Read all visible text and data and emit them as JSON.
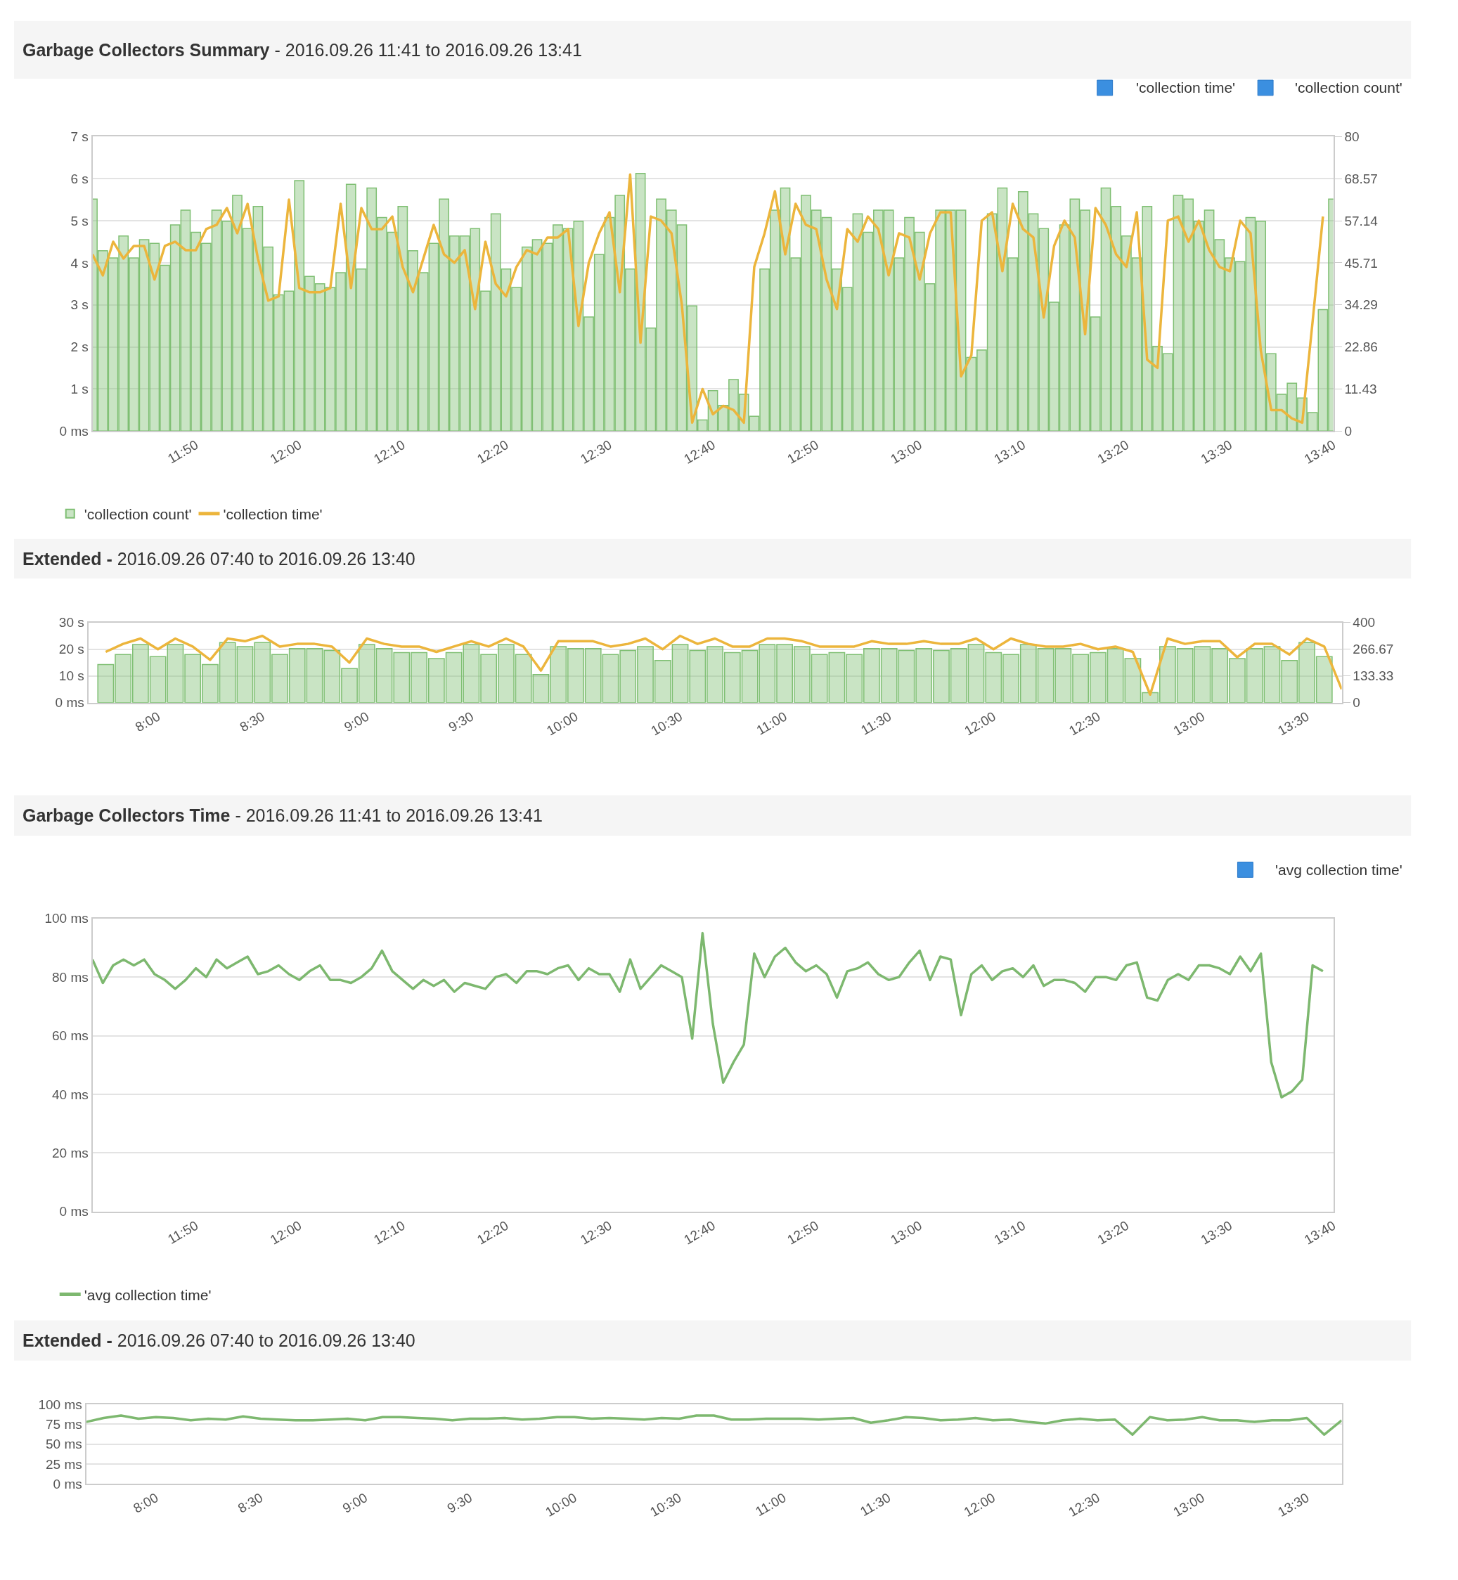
{
  "chart_data": [
    {
      "type": "bar",
      "title": "Garbage Collectors Summary",
      "subtitle": "- 2016.09.26 11:41 to 2016.09.26 13:41",
      "x": [
        "2016-09-26T11:40",
        "2016-09-26T11:41",
        "2016-09-26T11:42",
        "2016-09-26T11:43",
        "2016-09-26T11:44",
        "2016-09-26T11:45",
        "2016-09-26T11:46",
        "2016-09-26T11:47",
        "2016-09-26T11:48",
        "2016-09-26T11:49",
        "2016-09-26T11:50",
        "2016-09-26T11:51",
        "2016-09-26T11:52",
        "2016-09-26T11:53",
        "2016-09-26T11:54",
        "2016-09-26T11:55",
        "2016-09-26T11:56",
        "2016-09-26T11:57",
        "2016-09-26T11:58",
        "2016-09-26T11:59",
        "2016-09-26T12:00",
        "2016-09-26T12:01",
        "2016-09-26T12:02",
        "2016-09-26T12:03",
        "2016-09-26T12:04",
        "2016-09-26T12:05",
        "2016-09-26T12:06",
        "2016-09-26T12:07",
        "2016-09-26T12:08",
        "2016-09-26T12:09",
        "2016-09-26T12:10",
        "2016-09-26T12:11",
        "2016-09-26T12:12",
        "2016-09-26T12:13",
        "2016-09-26T12:14",
        "2016-09-26T12:15",
        "2016-09-26T12:16",
        "2016-09-26T12:17",
        "2016-09-26T12:18",
        "2016-09-26T12:19",
        "2016-09-26T12:20",
        "2016-09-26T12:21",
        "2016-09-26T12:22",
        "2016-09-26T12:23",
        "2016-09-26T12:24",
        "2016-09-26T12:25",
        "2016-09-26T12:26",
        "2016-09-26T12:27",
        "2016-09-26T12:28",
        "2016-09-26T12:29",
        "2016-09-26T12:30",
        "2016-09-26T12:31",
        "2016-09-26T12:32",
        "2016-09-26T12:33",
        "2016-09-26T12:34",
        "2016-09-26T12:35",
        "2016-09-26T12:36",
        "2016-09-26T12:37",
        "2016-09-26T12:38",
        "2016-09-26T12:39",
        "2016-09-26T12:40",
        "2016-09-26T12:41",
        "2016-09-26T12:42",
        "2016-09-26T12:43",
        "2016-09-26T12:44",
        "2016-09-26T12:45",
        "2016-09-26T12:46",
        "2016-09-26T12:47",
        "2016-09-26T12:48",
        "2016-09-26T12:49",
        "2016-09-26T12:50",
        "2016-09-26T12:51",
        "2016-09-26T12:52",
        "2016-09-26T12:53",
        "2016-09-26T12:54",
        "2016-09-26T12:55",
        "2016-09-26T12:56",
        "2016-09-26T12:57",
        "2016-09-26T12:58",
        "2016-09-26T12:59",
        "2016-09-26T13:00",
        "2016-09-26T13:01",
        "2016-09-26T13:02",
        "2016-09-26T13:03",
        "2016-09-26T13:04",
        "2016-09-26T13:05",
        "2016-09-26T13:06",
        "2016-09-26T13:07",
        "2016-09-26T13:08",
        "2016-09-26T13:09",
        "2016-09-26T13:10",
        "2016-09-26T13:11",
        "2016-09-26T13:12",
        "2016-09-26T13:13",
        "2016-09-26T13:14",
        "2016-09-26T13:15",
        "2016-09-26T13:16",
        "2016-09-26T13:17",
        "2016-09-26T13:18",
        "2016-09-26T13:19",
        "2016-09-26T13:20",
        "2016-09-26T13:21",
        "2016-09-26T13:22",
        "2016-09-26T13:23",
        "2016-09-26T13:24",
        "2016-09-26T13:25",
        "2016-09-26T13:26",
        "2016-09-26T13:27",
        "2016-09-26T13:28",
        "2016-09-26T13:29",
        "2016-09-26T13:30",
        "2016-09-26T13:31",
        "2016-09-26T13:32",
        "2016-09-26T13:33",
        "2016-09-26T13:34",
        "2016-09-26T13:35",
        "2016-09-26T13:36",
        "2016-09-26T13:37",
        "2016-09-26T13:38",
        "2016-09-26T13:39",
        "2016-09-26T13:40"
      ],
      "series": [
        {
          "name": "'collection count'",
          "type": "bar",
          "axis": "y2",
          "color": "#7fbf73",
          "values": [
            63,
            49,
            47,
            53,
            47,
            52,
            51,
            45,
            56,
            60,
            54,
            51,
            60,
            57,
            64,
            55,
            61,
            50,
            37,
            38,
            68,
            42,
            40,
            39,
            43,
            67,
            44,
            66,
            58,
            54,
            61,
            49,
            43,
            51,
            63,
            53,
            53,
            55,
            38,
            59,
            44,
            39,
            50,
            52,
            51,
            56,
            55,
            57,
            31,
            48,
            58,
            64,
            44,
            70,
            28,
            63,
            60,
            56,
            34,
            3,
            11,
            7,
            14,
            10,
            4,
            44,
            60,
            66,
            47,
            64,
            60,
            58,
            44,
            39,
            59,
            54,
            60,
            60,
            47,
            58,
            54,
            40,
            60,
            60,
            60,
            20,
            22,
            59,
            66,
            47,
            65,
            59,
            55,
            35,
            56,
            63,
            60,
            31,
            66,
            61,
            53,
            47,
            61,
            23,
            21,
            64,
            63,
            57,
            60,
            52,
            47,
            46,
            58,
            57,
            21,
            10,
            13,
            9,
            5,
            33,
            63
          ]
        },
        {
          "name": "'collection time'",
          "type": "line",
          "color": "#ecb53c",
          "values": [
            4.2,
            3.7,
            4.5,
            4.1,
            4.4,
            4.4,
            3.6,
            4.4,
            4.5,
            4.3,
            4.3,
            4.8,
            4.9,
            5.3,
            4.7,
            5.4,
            4.1,
            3.1,
            3.2,
            5.5,
            3.4,
            3.3,
            3.3,
            3.4,
            5.4,
            3.4,
            5.3,
            4.8,
            4.8,
            5.1,
            3.9,
            3.3,
            4.1,
            4.9,
            4.2,
            4.0,
            4.3,
            2.9,
            4.5,
            3.5,
            3.2,
            3.9,
            4.3,
            4.2,
            4.6,
            4.6,
            4.8,
            2.5,
            4.0,
            4.7,
            5.2,
            3.3,
            6.1,
            2.1,
            5.1,
            5.0,
            4.7,
            3.0,
            0.2,
            1.0,
            0.4,
            0.6,
            0.5,
            0.2,
            3.9,
            4.7,
            5.7,
            4.2,
            5.4,
            4.9,
            4.8,
            3.6,
            2.9,
            4.8,
            4.5,
            5.1,
            4.8,
            3.7,
            4.7,
            4.6,
            3.6,
            4.7,
            5.2,
            5.2,
            1.3,
            1.8,
            5.0,
            5.2,
            3.8,
            5.4,
            4.8,
            4.6,
            2.7,
            4.4,
            5.0,
            4.6,
            2.3,
            5.3,
            4.9,
            4.2,
            3.9,
            5.2,
            1.7,
            1.5,
            5.0,
            5.1,
            4.5,
            5.0,
            4.3,
            3.9,
            3.8,
            5.0,
            4.7,
            1.9,
            0.5,
            0.5,
            0.3,
            0.2,
            2.6,
            5.1,
            null
          ]
        }
      ],
      "xlim": [
        "2016-09-26T11:40",
        "2016-09-26T13:40"
      ],
      "xticks": [
        {
          "value": "2016-09-26T11:50",
          "label": "11:50"
        },
        {
          "value": "2016-09-26T12:00",
          "label": "12:00"
        },
        {
          "value": "2016-09-26T12:10",
          "label": "12:10"
        },
        {
          "value": "2016-09-26T12:20",
          "label": "12:20"
        },
        {
          "value": "2016-09-26T12:30",
          "label": "12:30"
        },
        {
          "value": "2016-09-26T12:40",
          "label": "12:40"
        },
        {
          "value": "2016-09-26T12:50",
          "label": "12:50"
        },
        {
          "value": "2016-09-26T13:00",
          "label": "13:00"
        },
        {
          "value": "2016-09-26T13:10",
          "label": "13:10"
        },
        {
          "value": "2016-09-26T13:20",
          "label": "13:20"
        },
        {
          "value": "2016-09-26T13:30",
          "label": "13:30"
        },
        {
          "value": "2016-09-26T13:40",
          "label": "13:40"
        }
      ],
      "ylim": [
        0,
        7
      ],
      "yticks": [
        {
          "value": 0,
          "label": "0 ms"
        },
        {
          "value": 1,
          "label": "1 s"
        },
        {
          "value": 2,
          "label": "2 s"
        },
        {
          "value": 3,
          "label": "3 s"
        },
        {
          "value": 4,
          "label": "4 s"
        },
        {
          "value": 5,
          "label": "5 s"
        },
        {
          "value": 6,
          "label": "6 s"
        },
        {
          "value": 7,
          "label": "7 s"
        }
      ],
      "y2lim": [
        0,
        80
      ],
      "y2ticks": [
        0,
        11.43,
        22.86,
        34.29,
        45.71,
        57.14,
        68.57,
        80
      ],
      "grid": "y",
      "legend": "bottom left"
    },
    {
      "type": "bar",
      "title": "Extended -",
      "subtitle": "2016.09.26 07:40 to 2016.09.26 13:40",
      "x": [
        "2016-09-26T07:45",
        "2016-09-26T07:50",
        "2016-09-26T07:55",
        "2016-09-26T08:00",
        "2016-09-26T08:05",
        "2016-09-26T08:10",
        "2016-09-26T08:15",
        "2016-09-26T08:20",
        "2016-09-26T08:25",
        "2016-09-26T08:30",
        "2016-09-26T08:35",
        "2016-09-26T08:40",
        "2016-09-26T08:45",
        "2016-09-26T08:50",
        "2016-09-26T08:55",
        "2016-09-26T09:00",
        "2016-09-26T09:05",
        "2016-09-26T09:10",
        "2016-09-26T09:15",
        "2016-09-26T09:20",
        "2016-09-26T09:25",
        "2016-09-26T09:30",
        "2016-09-26T09:35",
        "2016-09-26T09:40",
        "2016-09-26T09:45",
        "2016-09-26T09:50",
        "2016-09-26T09:55",
        "2016-09-26T10:00",
        "2016-09-26T10:05",
        "2016-09-26T10:10",
        "2016-09-26T10:15",
        "2016-09-26T10:20",
        "2016-09-26T10:25",
        "2016-09-26T10:30",
        "2016-09-26T10:35",
        "2016-09-26T10:40",
        "2016-09-26T10:45",
        "2016-09-26T10:50",
        "2016-09-26T10:55",
        "2016-09-26T11:00",
        "2016-09-26T11:05",
        "2016-09-26T11:10",
        "2016-09-26T11:15",
        "2016-09-26T11:20",
        "2016-09-26T11:25",
        "2016-09-26T11:30",
        "2016-09-26T11:35",
        "2016-09-26T11:40",
        "2016-09-26T11:45",
        "2016-09-26T11:50",
        "2016-09-26T11:55",
        "2016-09-26T12:00",
        "2016-09-26T12:05",
        "2016-09-26T12:10",
        "2016-09-26T12:15",
        "2016-09-26T12:20",
        "2016-09-26T12:25",
        "2016-09-26T12:30",
        "2016-09-26T12:35",
        "2016-09-26T12:40",
        "2016-09-26T12:45",
        "2016-09-26T12:50",
        "2016-09-26T12:55",
        "2016-09-26T13:00",
        "2016-09-26T13:05",
        "2016-09-26T13:10",
        "2016-09-26T13:15",
        "2016-09-26T13:20",
        "2016-09-26T13:25",
        "2016-09-26T13:30",
        "2016-09-26T13:35",
        "2016-09-26T13:40"
      ],
      "series": [
        {
          "type": "bar",
          "axis": "y2",
          "color": "#7fbf73",
          "values": [
            190,
            240,
            290,
            230,
            290,
            240,
            190,
            300,
            280,
            300,
            240,
            270,
            270,
            260,
            170,
            290,
            270,
            250,
            250,
            220,
            250,
            290,
            240,
            290,
            240,
            140,
            280,
            270,
            270,
            240,
            260,
            280,
            210,
            290,
            260,
            280,
            250,
            260,
            290,
            290,
            280,
            240,
            250,
            240,
            270,
            270,
            260,
            270,
            260,
            270,
            290,
            250,
            240,
            290,
            270,
            270,
            240,
            250,
            270,
            220,
            50,
            280,
            270,
            280,
            270,
            220,
            270,
            280,
            210,
            300,
            230,
            null
          ]
        },
        {
          "type": "line",
          "color": "#ecb53c",
          "values": [
            19,
            22,
            24,
            20,
            24,
            21,
            16,
            24,
            23,
            25,
            21,
            22,
            22,
            21,
            15,
            24,
            22,
            21,
            21,
            19,
            21,
            23,
            21,
            24,
            21,
            12,
            23,
            23,
            23,
            21,
            22,
            24,
            20,
            25,
            22,
            24,
            21,
            21,
            24,
            24,
            23,
            21,
            21,
            21,
            23,
            22,
            22,
            23,
            22,
            22,
            24,
            20,
            24,
            22,
            21,
            21,
            22,
            20,
            21,
            19,
            3,
            24,
            22,
            23,
            23,
            17,
            22,
            22,
            18,
            24,
            21,
            5
          ]
        }
      ],
      "xlim": [
        "2016-09-26T07:40",
        "2016-09-26T13:40"
      ],
      "xticks": [
        {
          "value": "2016-09-26T08:00",
          "label": "8:00"
        },
        {
          "value": "2016-09-26T08:30",
          "label": "8:30"
        },
        {
          "value": "2016-09-26T09:00",
          "label": "9:00"
        },
        {
          "value": "2016-09-26T09:30",
          "label": "9:30"
        },
        {
          "value": "2016-09-26T10:00",
          "label": "10:00"
        },
        {
          "value": "2016-09-26T10:30",
          "label": "10:30"
        },
        {
          "value": "2016-09-26T11:00",
          "label": "11:00"
        },
        {
          "value": "2016-09-26T11:30",
          "label": "11:30"
        },
        {
          "value": "2016-09-26T12:00",
          "label": "12:00"
        },
        {
          "value": "2016-09-26T12:30",
          "label": "12:30"
        },
        {
          "value": "2016-09-26T13:00",
          "label": "13:00"
        },
        {
          "value": "2016-09-26T13:30",
          "label": "13:30"
        }
      ],
      "ylim": [
        0,
        30
      ],
      "yticks": [
        {
          "value": 0,
          "label": "0 ms"
        },
        {
          "value": 10,
          "label": "10 s"
        },
        {
          "value": 20,
          "label": "20 s"
        },
        {
          "value": 30,
          "label": "30 s"
        }
      ],
      "y2lim": [
        0,
        400
      ],
      "y2ticks": [
        0,
        133.33,
        266.67,
        400
      ],
      "grid": "y"
    },
    {
      "type": "line",
      "title": "Garbage Collectors Time",
      "subtitle": "- 2016.09.26 11:41 to 2016.09.26 13:41",
      "x": [
        "2016-09-26T11:40",
        "2016-09-26T11:41",
        "2016-09-26T11:42",
        "2016-09-26T11:43",
        "2016-09-26T11:44",
        "2016-09-26T11:45",
        "2016-09-26T11:46",
        "2016-09-26T11:47",
        "2016-09-26T11:48",
        "2016-09-26T11:49",
        "2016-09-26T11:50",
        "2016-09-26T11:51",
        "2016-09-26T11:52",
        "2016-09-26T11:53",
        "2016-09-26T11:54",
        "2016-09-26T11:55",
        "2016-09-26T11:56",
        "2016-09-26T11:57",
        "2016-09-26T11:58",
        "2016-09-26T11:59",
        "2016-09-26T12:00",
        "2016-09-26T12:01",
        "2016-09-26T12:02",
        "2016-09-26T12:03",
        "2016-09-26T12:04",
        "2016-09-26T12:05",
        "2016-09-26T12:06",
        "2016-09-26T12:07",
        "2016-09-26T12:08",
        "2016-09-26T12:09",
        "2016-09-26T12:10",
        "2016-09-26T12:11",
        "2016-09-26T12:12",
        "2016-09-26T12:13",
        "2016-09-26T12:14",
        "2016-09-26T12:15",
        "2016-09-26T12:16",
        "2016-09-26T12:17",
        "2016-09-26T12:18",
        "2016-09-26T12:19",
        "2016-09-26T12:20",
        "2016-09-26T12:21",
        "2016-09-26T12:22",
        "2016-09-26T12:23",
        "2016-09-26T12:24",
        "2016-09-26T12:25",
        "2016-09-26T12:26",
        "2016-09-26T12:27",
        "2016-09-26T12:28",
        "2016-09-26T12:29",
        "2016-09-26T12:30",
        "2016-09-26T12:31",
        "2016-09-26T12:32",
        "2016-09-26T12:33",
        "2016-09-26T12:34",
        "2016-09-26T12:35",
        "2016-09-26T12:36",
        "2016-09-26T12:37",
        "2016-09-26T12:38",
        "2016-09-26T12:39",
        "2016-09-26T12:40",
        "2016-09-26T12:41",
        "2016-09-26T12:42",
        "2016-09-26T12:43",
        "2016-09-26T12:44",
        "2016-09-26T12:45",
        "2016-09-26T12:46",
        "2016-09-26T12:47",
        "2016-09-26T12:48",
        "2016-09-26T12:49",
        "2016-09-26T12:50",
        "2016-09-26T12:51",
        "2016-09-26T12:52",
        "2016-09-26T12:53",
        "2016-09-26T12:54",
        "2016-09-26T12:55",
        "2016-09-26T12:56",
        "2016-09-26T12:57",
        "2016-09-26T12:58",
        "2016-09-26T12:59",
        "2016-09-26T13:00",
        "2016-09-26T13:01",
        "2016-09-26T13:02",
        "2016-09-26T13:03",
        "2016-09-26T13:04",
        "2016-09-26T13:05",
        "2016-09-26T13:06",
        "2016-09-26T13:07",
        "2016-09-26T13:08",
        "2016-09-26T13:09",
        "2016-09-26T13:10",
        "2016-09-26T13:11",
        "2016-09-26T13:12",
        "2016-09-26T13:13",
        "2016-09-26T13:14",
        "2016-09-26T13:15",
        "2016-09-26T13:16",
        "2016-09-26T13:17",
        "2016-09-26T13:18",
        "2016-09-26T13:19",
        "2016-09-26T13:20",
        "2016-09-26T13:21",
        "2016-09-26T13:22",
        "2016-09-26T13:23",
        "2016-09-26T13:24",
        "2016-09-26T13:25",
        "2016-09-26T13:26",
        "2016-09-26T13:27",
        "2016-09-26T13:28",
        "2016-09-26T13:29",
        "2016-09-26T13:30",
        "2016-09-26T13:31",
        "2016-09-26T13:32",
        "2016-09-26T13:33",
        "2016-09-26T13:34",
        "2016-09-26T13:35",
        "2016-09-26T13:36",
        "2016-09-26T13:37",
        "2016-09-26T13:38",
        "2016-09-26T13:39"
      ],
      "series": [
        {
          "name": "'avg collection time'",
          "color": "#7db86f",
          "values": [
            86,
            78,
            84,
            86,
            84,
            86,
            81,
            79,
            76,
            79,
            83,
            80,
            86,
            83,
            85,
            87,
            81,
            82,
            84,
            81,
            79,
            82,
            84,
            79,
            79,
            78,
            80,
            83,
            89,
            82,
            79,
            76,
            79,
            77,
            79,
            75,
            78,
            77,
            76,
            80,
            81,
            78,
            82,
            82,
            81,
            83,
            84,
            79,
            83,
            81,
            81,
            75,
            86,
            76,
            80,
            84,
            82,
            80,
            59,
            95,
            64,
            44,
            51,
            57,
            88,
            80,
            87,
            90,
            85,
            82,
            84,
            81,
            73,
            82,
            83,
            85,
            81,
            79,
            80,
            85,
            89,
            79,
            87,
            86,
            67,
            81,
            84,
            79,
            82,
            83,
            80,
            84,
            77,
            79,
            79,
            78,
            75,
            80,
            80,
            79,
            84,
            85,
            73,
            72,
            79,
            81,
            79,
            84,
            84,
            83,
            81,
            87,
            82,
            88,
            51,
            39,
            41,
            45,
            84,
            82
          ]
        }
      ],
      "xlim": [
        "2016-09-26T11:40",
        "2016-09-26T13:40"
      ],
      "xticks": [
        {
          "value": "2016-09-26T11:50",
          "label": "11:50"
        },
        {
          "value": "2016-09-26T12:00",
          "label": "12:00"
        },
        {
          "value": "2016-09-26T12:10",
          "label": "12:10"
        },
        {
          "value": "2016-09-26T12:20",
          "label": "12:20"
        },
        {
          "value": "2016-09-26T12:30",
          "label": "12:30"
        },
        {
          "value": "2016-09-26T12:40",
          "label": "12:40"
        },
        {
          "value": "2016-09-26T12:50",
          "label": "12:50"
        },
        {
          "value": "2016-09-26T13:00",
          "label": "13:00"
        },
        {
          "value": "2016-09-26T13:10",
          "label": "13:10"
        },
        {
          "value": "2016-09-26T13:20",
          "label": "13:20"
        },
        {
          "value": "2016-09-26T13:30",
          "label": "13:30"
        },
        {
          "value": "2016-09-26T13:40",
          "label": "13:40"
        }
      ],
      "ylim": [
        0,
        100
      ],
      "yticks": [
        {
          "value": 0,
          "label": "0 ms"
        },
        {
          "value": 20,
          "label": "20 ms"
        },
        {
          "value": 40,
          "label": "40 ms"
        },
        {
          "value": 60,
          "label": "60 ms"
        },
        {
          "value": 80,
          "label": "80 ms"
        },
        {
          "value": 100,
          "label": "100 ms"
        }
      ],
      "grid": "y",
      "legend": "bottom left"
    },
    {
      "type": "line",
      "title": "Extended -",
      "subtitle": "2016.09.26 07:40 to 2016.09.26 13:40",
      "x": [
        "2016-09-26T07:40",
        "2016-09-26T07:45",
        "2016-09-26T07:50",
        "2016-09-26T07:55",
        "2016-09-26T08:00",
        "2016-09-26T08:05",
        "2016-09-26T08:10",
        "2016-09-26T08:15",
        "2016-09-26T08:20",
        "2016-09-26T08:25",
        "2016-09-26T08:30",
        "2016-09-26T08:35",
        "2016-09-26T08:40",
        "2016-09-26T08:45",
        "2016-09-26T08:50",
        "2016-09-26T08:55",
        "2016-09-26T09:00",
        "2016-09-26T09:05",
        "2016-09-26T09:10",
        "2016-09-26T09:15",
        "2016-09-26T09:20",
        "2016-09-26T09:25",
        "2016-09-26T09:30",
        "2016-09-26T09:35",
        "2016-09-26T09:40",
        "2016-09-26T09:45",
        "2016-09-26T09:50",
        "2016-09-26T09:55",
        "2016-09-26T10:00",
        "2016-09-26T10:05",
        "2016-09-26T10:10",
        "2016-09-26T10:15",
        "2016-09-26T10:20",
        "2016-09-26T10:25",
        "2016-09-26T10:30",
        "2016-09-26T10:35",
        "2016-09-26T10:40",
        "2016-09-26T10:45",
        "2016-09-26T10:50",
        "2016-09-26T10:55",
        "2016-09-26T11:00",
        "2016-09-26T11:05",
        "2016-09-26T11:10",
        "2016-09-26T11:15",
        "2016-09-26T11:20",
        "2016-09-26T11:25",
        "2016-09-26T11:30",
        "2016-09-26T11:35",
        "2016-09-26T11:40",
        "2016-09-26T11:45",
        "2016-09-26T11:50",
        "2016-09-26T11:55",
        "2016-09-26T12:00",
        "2016-09-26T12:05",
        "2016-09-26T12:10",
        "2016-09-26T12:15",
        "2016-09-26T12:20",
        "2016-09-26T12:25",
        "2016-09-26T12:30",
        "2016-09-26T12:35",
        "2016-09-26T12:40",
        "2016-09-26T12:45",
        "2016-09-26T12:50",
        "2016-09-26T12:55",
        "2016-09-26T13:00",
        "2016-09-26T13:05",
        "2016-09-26T13:10",
        "2016-09-26T13:15",
        "2016-09-26T13:20",
        "2016-09-26T13:25",
        "2016-09-26T13:30",
        "2016-09-26T13:35",
        "2016-09-26T13:40"
      ],
      "series": [
        {
          "color": "#7db86f",
          "values": [
            78,
            83,
            86,
            82,
            84,
            83,
            80,
            82,
            81,
            85,
            82,
            81,
            80,
            80,
            81,
            82,
            80,
            84,
            84,
            83,
            82,
            80,
            82,
            82,
            83,
            81,
            82,
            84,
            84,
            82,
            83,
            82,
            81,
            83,
            82,
            86,
            86,
            81,
            81,
            82,
            82,
            82,
            81,
            82,
            83,
            77,
            80,
            84,
            83,
            80,
            81,
            83,
            80,
            81,
            78,
            76,
            80,
            82,
            80,
            81,
            62,
            84,
            80,
            81,
            84,
            80,
            80,
            78,
            80,
            80,
            83,
            62,
            80
          ]
        }
      ],
      "xlim": [
        "2016-09-26T07:40",
        "2016-09-26T13:40"
      ],
      "xticks": [
        {
          "value": "2016-09-26T08:00",
          "label": "8:00"
        },
        {
          "value": "2016-09-26T08:30",
          "label": "8:30"
        },
        {
          "value": "2016-09-26T09:00",
          "label": "9:00"
        },
        {
          "value": "2016-09-26T09:30",
          "label": "9:30"
        },
        {
          "value": "2016-09-26T10:00",
          "label": "10:00"
        },
        {
          "value": "2016-09-26T10:30",
          "label": "10:30"
        },
        {
          "value": "2016-09-26T11:00",
          "label": "11:00"
        },
        {
          "value": "2016-09-26T11:30",
          "label": "11:30"
        },
        {
          "value": "2016-09-26T12:00",
          "label": "12:00"
        },
        {
          "value": "2016-09-26T12:30",
          "label": "12:30"
        },
        {
          "value": "2016-09-26T13:00",
          "label": "13:00"
        },
        {
          "value": "2016-09-26T13:30",
          "label": "13:30"
        }
      ],
      "ylim": [
        0,
        100
      ],
      "yticks": [
        {
          "value": 0,
          "label": "0 ms"
        },
        {
          "value": 25,
          "label": "25 ms"
        },
        {
          "value": 50,
          "label": "50 ms"
        },
        {
          "value": 75,
          "label": "75 ms"
        },
        {
          "value": 100,
          "label": "100 ms"
        }
      ],
      "grid": "y"
    }
  ]
}
